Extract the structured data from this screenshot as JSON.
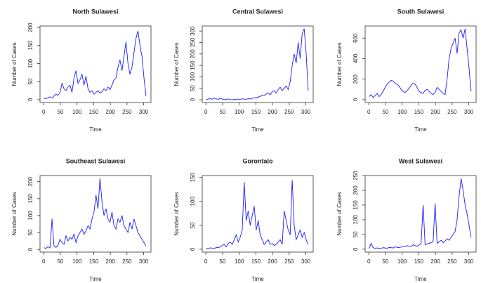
{
  "chart_data": [
    {
      "type": "line",
      "title": "North Sulawesi",
      "xlabel": "Time",
      "ylabel": "Number of Cases",
      "color": "#1a1aff",
      "x": [
        1,
        7,
        13,
        19,
        25,
        31,
        37,
        43,
        49,
        55,
        61,
        67,
        73,
        79,
        85,
        91,
        97,
        103,
        109,
        115,
        121,
        127,
        133,
        139,
        145,
        151,
        157,
        163,
        169,
        175,
        181,
        187,
        193,
        199,
        205,
        211,
        217,
        223,
        229,
        235,
        241,
        247,
        253,
        259,
        265,
        271,
        277,
        283,
        289,
        295,
        301,
        307
      ],
      "values": [
        2,
        3,
        5,
        8,
        4,
        10,
        15,
        12,
        20,
        45,
        30,
        25,
        35,
        40,
        20,
        60,
        80,
        45,
        55,
        70,
        40,
        65,
        30,
        20,
        25,
        15,
        20,
        25,
        18,
        22,
        30,
        25,
        35,
        28,
        40,
        55,
        60,
        90,
        110,
        80,
        120,
        160,
        100,
        70,
        90,
        130,
        170,
        190,
        150,
        120,
        60,
        10
      ],
      "xlim": [
        -11,
        322
      ],
      "xticks": [
        0,
        50,
        100,
        150,
        200,
        250,
        300
      ],
      "ylim": [
        -8,
        204
      ],
      "yticks": [
        0,
        50,
        100,
        150,
        200
      ]
    },
    {
      "type": "line",
      "title": "Central Sulawesi",
      "xlabel": "Time",
      "ylabel": "Number of Cases",
      "color": "#1a1aff",
      "x": [
        1,
        7,
        13,
        19,
        25,
        31,
        37,
        43,
        49,
        55,
        61,
        67,
        73,
        79,
        85,
        91,
        97,
        103,
        109,
        115,
        121,
        127,
        133,
        139,
        145,
        151,
        157,
        163,
        169,
        175,
        181,
        187,
        193,
        199,
        205,
        211,
        217,
        223,
        229,
        235,
        241,
        247,
        253,
        259,
        265,
        271,
        277,
        283,
        289,
        295,
        301,
        307
      ],
      "values": [
        0,
        3,
        5,
        2,
        8,
        4,
        2,
        6,
        3,
        1,
        2,
        4,
        1,
        0,
        2,
        1,
        3,
        2,
        4,
        3,
        2,
        5,
        3,
        6,
        10,
        8,
        12,
        15,
        20,
        18,
        25,
        30,
        22,
        35,
        40,
        30,
        45,
        55,
        40,
        50,
        60,
        45,
        80,
        150,
        200,
        160,
        250,
        180,
        290,
        310,
        200,
        40
      ],
      "xlim": [
        -11,
        322
      ],
      "xticks": [
        0,
        50,
        100,
        150,
        200,
        250,
        300
      ],
      "ylim": [
        -12,
        322
      ],
      "yticks": [
        0,
        50,
        100,
        150,
        200,
        250,
        300
      ]
    },
    {
      "type": "line",
      "title": "South Sulawesi",
      "xlabel": "Time",
      "ylabel": "Number of Cases",
      "color": "#1a1aff",
      "x": [
        1,
        7,
        13,
        19,
        25,
        31,
        37,
        43,
        49,
        55,
        61,
        67,
        73,
        79,
        85,
        91,
        97,
        103,
        109,
        115,
        121,
        127,
        133,
        139,
        145,
        151,
        157,
        163,
        169,
        175,
        181,
        187,
        193,
        199,
        205,
        211,
        217,
        223,
        229,
        235,
        241,
        247,
        253,
        259,
        265,
        271,
        277,
        283,
        289,
        295,
        301,
        307
      ],
      "values": [
        30,
        50,
        20,
        40,
        60,
        30,
        50,
        80,
        120,
        150,
        170,
        190,
        180,
        160,
        150,
        130,
        100,
        80,
        70,
        90,
        110,
        140,
        160,
        150,
        120,
        80,
        70,
        60,
        90,
        100,
        80,
        60,
        50,
        70,
        120,
        100,
        80,
        60,
        50,
        200,
        400,
        500,
        550,
        600,
        450,
        650,
        680,
        600,
        690,
        500,
        300,
        80
      ],
      "xlim": [
        -11,
        322
      ],
      "xticks": [
        0,
        50,
        100,
        150,
        200,
        250,
        300
      ],
      "ylim": [
        -28,
        718
      ],
      "yticks": [
        0,
        200,
        400,
        600
      ]
    },
    {
      "type": "line",
      "title": "Southeast Sulawesi",
      "xlabel": "Time",
      "ylabel": "Number of Cases",
      "color": "#1a1aff",
      "x": [
        1,
        7,
        13,
        19,
        25,
        31,
        37,
        43,
        49,
        55,
        61,
        67,
        73,
        79,
        85,
        91,
        97,
        103,
        109,
        115,
        121,
        127,
        133,
        139,
        145,
        151,
        157,
        163,
        169,
        175,
        181,
        187,
        193,
        199,
        205,
        211,
        217,
        223,
        229,
        235,
        241,
        247,
        253,
        259,
        265,
        271,
        277,
        283,
        289,
        295,
        301,
        307
      ],
      "values": [
        5,
        3,
        8,
        4,
        90,
        10,
        6,
        12,
        30,
        20,
        15,
        40,
        25,
        35,
        30,
        45,
        20,
        40,
        50,
        60,
        45,
        55,
        70,
        60,
        90,
        110,
        160,
        120,
        210,
        140,
        100,
        120,
        90,
        80,
        110,
        70,
        60,
        90,
        80,
        100,
        70,
        60,
        50,
        80,
        60,
        90,
        70,
        50,
        40,
        30,
        20,
        10
      ],
      "xlim": [
        -11,
        322
      ],
      "xticks": [
        0,
        50,
        100,
        150,
        200,
        250,
        300
      ],
      "ylim": [
        -8,
        218
      ],
      "yticks": [
        0,
        50,
        100,
        150,
        200
      ]
    },
    {
      "type": "line",
      "title": "Gorontalo",
      "xlabel": "Time",
      "ylabel": "Number of Cases",
      "color": "#1a1aff",
      "x": [
        1,
        7,
        13,
        19,
        25,
        31,
        37,
        43,
        49,
        55,
        61,
        67,
        73,
        79,
        85,
        91,
        97,
        103,
        109,
        115,
        121,
        127,
        133,
        139,
        145,
        151,
        157,
        163,
        169,
        175,
        181,
        187,
        193,
        199,
        205,
        211,
        217,
        223,
        229,
        235,
        241,
        247,
        253,
        259,
        265,
        271,
        277,
        283,
        289,
        295,
        301,
        307
      ],
      "values": [
        2,
        1,
        3,
        2,
        1,
        4,
        3,
        5,
        8,
        10,
        5,
        12,
        15,
        10,
        20,
        30,
        15,
        25,
        40,
        140,
        60,
        80,
        50,
        70,
        90,
        40,
        60,
        30,
        20,
        10,
        15,
        20,
        10,
        12,
        8,
        10,
        15,
        20,
        10,
        80,
        60,
        40,
        30,
        145,
        50,
        20,
        30,
        40,
        25,
        35,
        20,
        10
      ],
      "xlim": [
        -11,
        322
      ],
      "xticks": [
        0,
        50,
        100,
        150,
        200,
        250,
        300
      ],
      "ylim": [
        -6,
        154
      ],
      "yticks": [
        0,
        50,
        100,
        150
      ]
    },
    {
      "type": "line",
      "title": "West Sulawesi",
      "xlabel": "Time",
      "ylabel": "Number of Cases",
      "color": "#1a1aff",
      "x": [
        1,
        7,
        13,
        19,
        25,
        31,
        37,
        43,
        49,
        55,
        61,
        67,
        73,
        79,
        85,
        91,
        97,
        103,
        109,
        115,
        121,
        127,
        133,
        139,
        145,
        151,
        157,
        163,
        169,
        175,
        181,
        187,
        193,
        199,
        205,
        211,
        217,
        223,
        229,
        235,
        241,
        247,
        253,
        259,
        265,
        271,
        277,
        283,
        289,
        295,
        301,
        307
      ],
      "values": [
        2,
        20,
        5,
        3,
        4,
        2,
        3,
        5,
        4,
        3,
        6,
        5,
        4,
        8,
        6,
        5,
        7,
        10,
        8,
        12,
        10,
        9,
        15,
        12,
        10,
        14,
        20,
        150,
        15,
        18,
        20,
        22,
        25,
        155,
        20,
        25,
        30,
        22,
        28,
        35,
        30,
        40,
        50,
        60,
        100,
        180,
        240,
        200,
        150,
        120,
        80,
        40
      ],
      "xlim": [
        -11,
        322
      ],
      "xticks": [
        0,
        50,
        100,
        150,
        200,
        250,
        300
      ],
      "ylim": [
        -10,
        250
      ],
      "yticks": [
        0,
        50,
        100,
        150,
        200,
        250
      ]
    }
  ]
}
